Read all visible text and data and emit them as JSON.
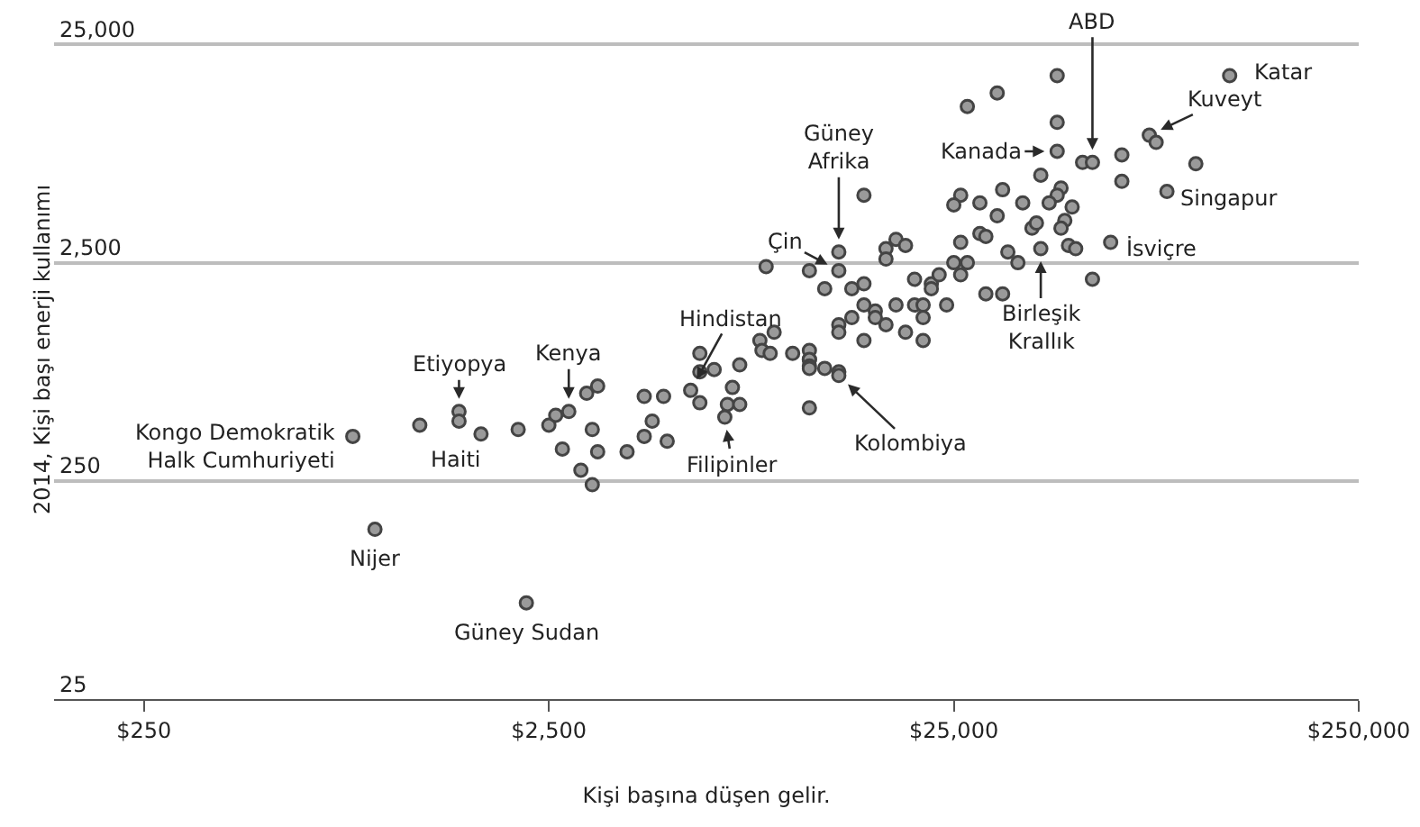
{
  "chart_data": {
    "type": "scatter",
    "xlabel": "Kişi başına düşen gelir.",
    "ylabel": "2014, Kişi başı enerji kullanımı",
    "log": "xy",
    "grid": "y",
    "marker": "circle",
    "color": "#9a9a9a",
    "xlim": [
      150,
      250000
    ],
    "ylim": [
      25,
      40000
    ],
    "xticks": [
      {
        "value": 250,
        "label": "$250"
      },
      {
        "value": 2500,
        "label": "$2,500"
      },
      {
        "value": 25000,
        "label": "$25,000"
      },
      {
        "value": 250000,
        "label": "$250,000"
      }
    ],
    "yticks": [
      {
        "value": 25,
        "label": "25"
      },
      {
        "value": 250,
        "label": "250"
      },
      {
        "value": 2500,
        "label": "2,500"
      },
      {
        "value": 25000,
        "label": "25,000"
      }
    ],
    "x": [
      820,
      1200,
      1500,
      1500,
      1700,
      2100,
      2500,
      2600,
      2800,
      3100,
      3300,
      3200,
      2700,
      3300,
      3000,
      3200,
      3900,
      4300,
      4900,
      4300,
      4800,
      4500,
      930,
      2200,
      15000,
      13000,
      8600,
      11000,
      13000,
      12000,
      14000,
      15000,
      17000,
      18000,
      17000,
      19000,
      20000,
      22000,
      15000,
      16000,
      18000,
      20000,
      16000,
      17000,
      21000,
      9000,
      14000,
      13000,
      13000,
      19000,
      21000,
      15000,
      8300,
      8400,
      8800,
      10000,
      11000,
      11000,
      11000,
      11000,
      11000,
      12000,
      13000,
      13000,
      5900,
      5900,
      6400,
      7400,
      5600,
      5900,
      7100,
      6900,
      7400,
      6800,
      11000,
      45000,
      32000,
      27000,
      45000,
      45000,
      52000,
      55000,
      65000,
      76000,
      79000,
      99000,
      120000,
      65000,
      84000,
      41000,
      26000,
      25000,
      29000,
      33000,
      37000,
      46000,
      45000,
      43000,
      49000,
      32000,
      29000,
      30000,
      26000,
      39000,
      40000,
      47000,
      46000,
      48000,
      50000,
      61000,
      41000,
      34000,
      36000,
      25000,
      27000,
      26000,
      23000,
      22000,
      55000,
      30000,
      33000,
      21000,
      24000
    ],
    "values": [
      400,
      450,
      520,
      470,
      410,
      430,
      450,
      500,
      520,
      630,
      680,
      430,
      350,
      340,
      280,
      240,
      340,
      400,
      380,
      610,
      610,
      470,
      150,
      69,
      5100,
      2800,
      2400,
      2300,
      2300,
      1900,
      1900,
      2000,
      2900,
      3200,
      2600,
      3000,
      2100,
      2000,
      1600,
      1500,
      1600,
      1600,
      1400,
      1300,
      1400,
      1200,
      1400,
      1300,
      1200,
      1200,
      1100,
      1100,
      1100,
      990,
      960,
      960,
      900,
      990,
      900,
      840,
      820,
      820,
      790,
      760,
      960,
      790,
      810,
      850,
      650,
      570,
      670,
      560,
      560,
      490,
      540,
      18000,
      15000,
      13000,
      11000,
      8100,
      7200,
      7200,
      7800,
      9600,
      8900,
      7100,
      18000,
      5900,
      5300,
      6300,
      5100,
      4600,
      4700,
      5400,
      4700,
      5500,
      5100,
      4700,
      4500,
      4100,
      3400,
      3300,
      3100,
      3600,
      3800,
      3900,
      3600,
      3000,
      2900,
      3100,
      2900,
      2800,
      2500,
      2500,
      2500,
      2200,
      2200,
      1900,
      2100,
      1800,
      1800,
      1600,
      1600
    ],
    "annotations": [
      {
        "text": "ABD",
        "x": 55000,
        "y": 7200
      },
      {
        "text": "Katar",
        "x": 120000,
        "y": 18000
      },
      {
        "text": "Kuveyt",
        "x": 76000,
        "y": 9600
      },
      {
        "text": "Kanada",
        "x": 45000,
        "y": 8100
      },
      {
        "text": "Singapur",
        "x": 84000,
        "y": 5300
      },
      {
        "text": "İsviçre",
        "x": 61000,
        "y": 3100
      },
      {
        "text": "Birleşik\nKrallık",
        "x": 41000,
        "y": 2900
      },
      {
        "text": "Güney\nAfrika",
        "x": 13000,
        "y": 2800
      },
      {
        "text": "Çin",
        "x": 13000,
        "y": 2300
      },
      {
        "text": "Hindistan",
        "x": 5600,
        "y": 650
      },
      {
        "text": "Kenya",
        "x": 2800,
        "y": 520
      },
      {
        "text": "Etiyopya",
        "x": 1500,
        "y": 520
      },
      {
        "text": "Haiti",
        "x": 1700,
        "y": 410
      },
      {
        "text": "Kongo Demokratik\nHalk Cumhuriyeti",
        "x": 820,
        "y": 400
      },
      {
        "text": "Nijer",
        "x": 930,
        "y": 150
      },
      {
        "text": "Güney Sudan",
        "x": 2200,
        "y": 69
      },
      {
        "text": "Filipinler",
        "x": 6800,
        "y": 490
      },
      {
        "text": "Kolombiya",
        "x": 13000,
        "y": 760
      }
    ]
  }
}
